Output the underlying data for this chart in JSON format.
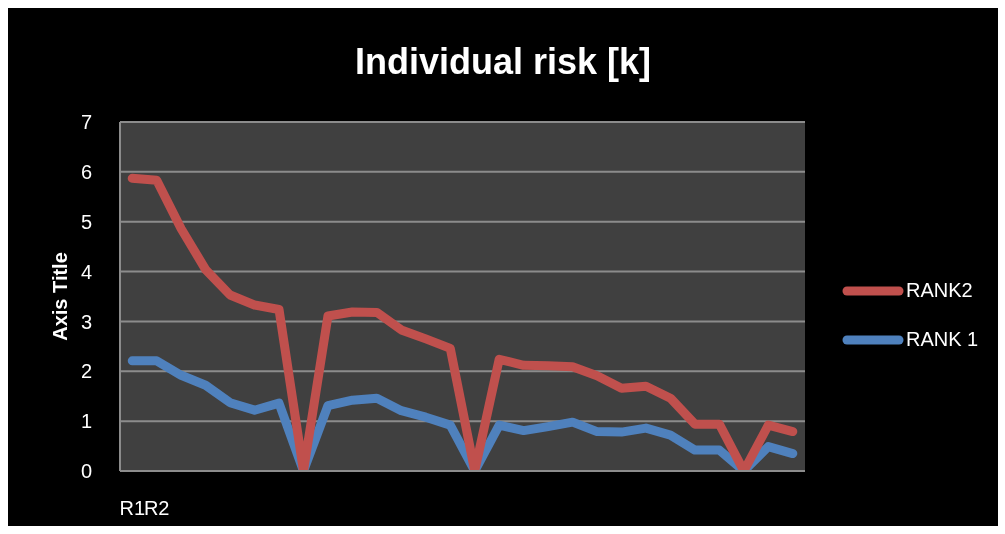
{
  "chart_data": {
    "type": "line",
    "title": "Individual risk [k]",
    "ylabel": "Axis Title",
    "categories": [
      "R1",
      "R2",
      null,
      null,
      null,
      null,
      null,
      null,
      null,
      null,
      null,
      null,
      null,
      null,
      null,
      null,
      null,
      null,
      null,
      null,
      null,
      null,
      null,
      null,
      null,
      null,
      null,
      null
    ],
    "series": [
      {
        "name": "RANK2",
        "color": "#c0504d",
        "values": [
          5.87,
          5.83,
          4.86,
          4.04,
          3.53,
          3.33,
          3.24,
          0,
          3.11,
          3.19,
          3.18,
          2.83,
          2.65,
          2.46,
          0,
          2.24,
          2.12,
          2.11,
          2.09,
          1.91,
          1.66,
          1.7,
          1.46,
          0.94,
          0.94,
          0,
          0.92,
          0.79
        ]
      },
      {
        "name": "RANK 1",
        "color": "#4f81bd",
        "values": [
          2.21,
          2.21,
          1.92,
          1.72,
          1.37,
          1.22,
          1.36,
          0,
          1.31,
          1.42,
          1.46,
          1.21,
          1.08,
          0.92,
          0,
          0.92,
          0.81,
          0.89,
          0.98,
          0.79,
          0.78,
          0.86,
          0.72,
          0.42,
          0.42,
          0,
          0.49,
          0.35
        ]
      }
    ],
    "ylim": [
      0,
      7
    ],
    "yticks": [
      0,
      1,
      2,
      3,
      4,
      5,
      6,
      7
    ],
    "grid": "y",
    "legend": "right",
    "marker": "none",
    "line_style": "solid"
  }
}
